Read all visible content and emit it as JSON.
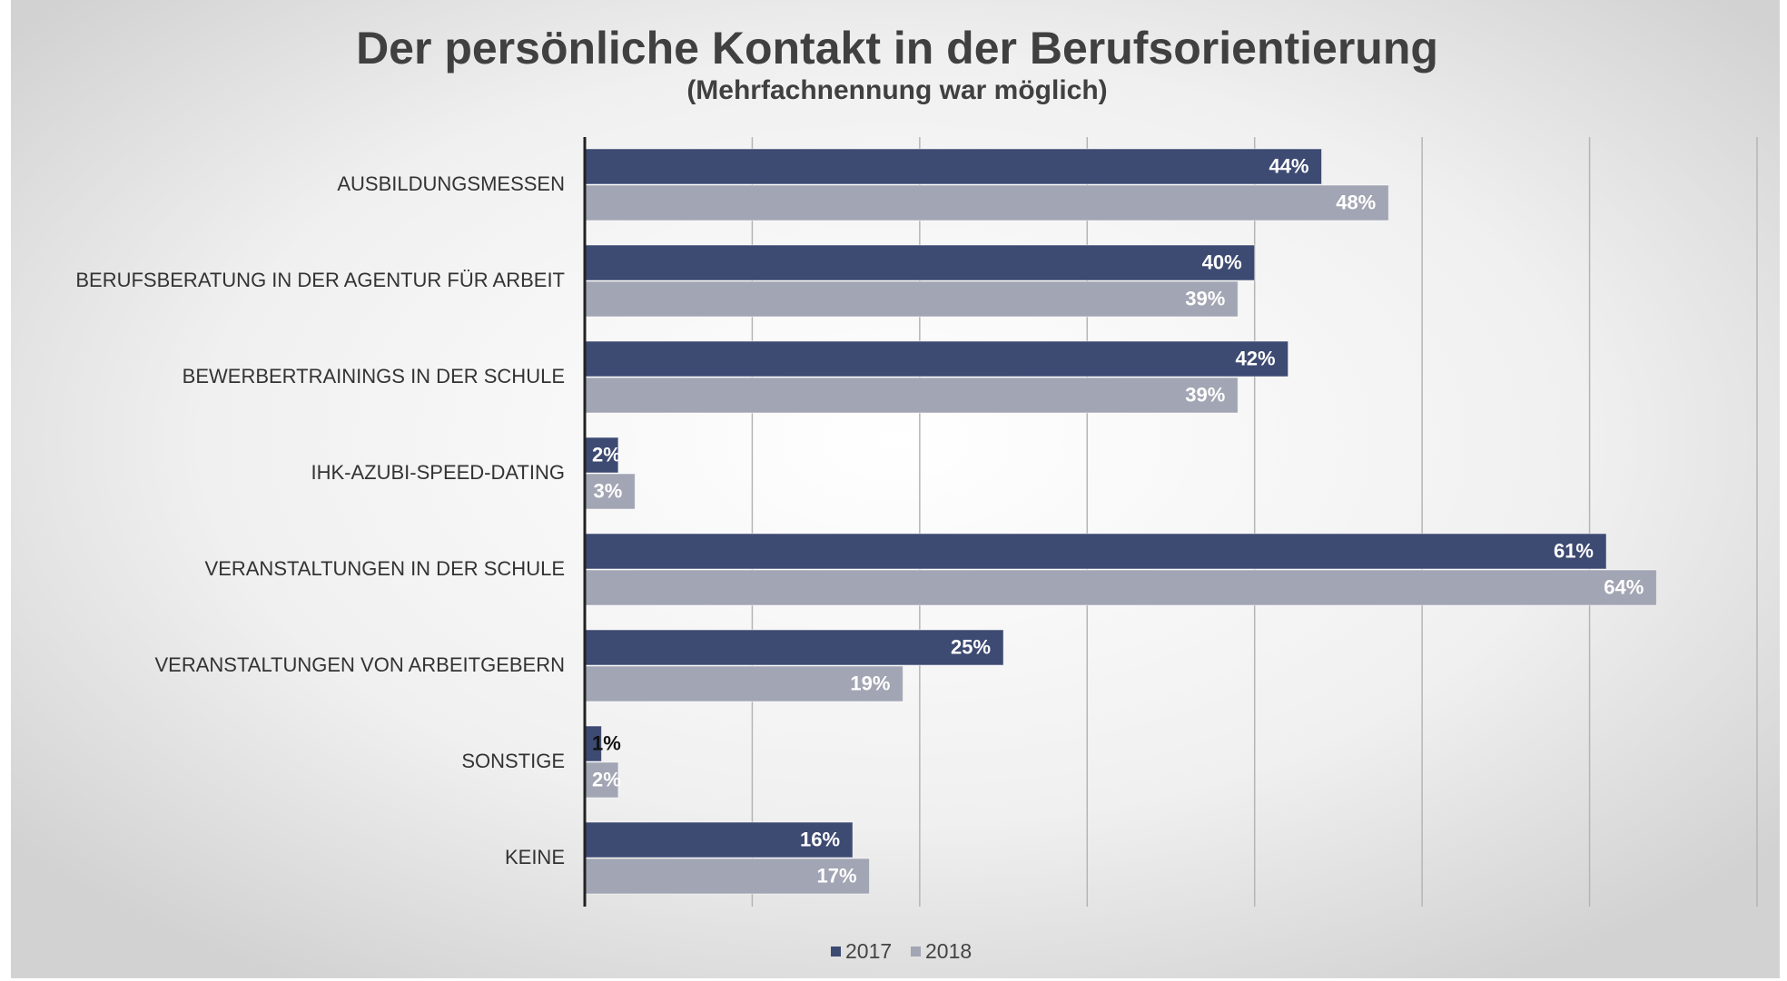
{
  "chart_data": {
    "type": "bar",
    "orientation": "horizontal",
    "title": "Der persönliche Kontakt in der Berufsorientierung",
    "subtitle": "(Mehrfachnennung war möglich)",
    "categories": [
      "AUSBILDUNGSMESSEN",
      "BERUFSBERATUNG IN DER AGENTUR FÜR ARBEIT",
      "BEWERBERTRAININGS IN DER SCHULE",
      "IHK-AZUBI-SPEED-DATING",
      "VERANSTALTUNGEN IN DER SCHULE",
      "VERANSTALTUNGEN VON ARBEITGEBERN",
      "SONSTIGE",
      "KEINE"
    ],
    "series": [
      {
        "name": "2017",
        "color": "#3d4a72",
        "values": [
          44,
          40,
          42,
          2,
          61,
          25,
          1,
          16
        ],
        "value_labels": [
          "44%",
          "40%",
          "42%",
          "2%",
          "61%",
          "25%",
          "1%",
          "16%"
        ]
      },
      {
        "name": "2018",
        "color": "#a2a5b3",
        "values": [
          48,
          39,
          39,
          3,
          64,
          19,
          2,
          17
        ],
        "value_labels": [
          "48%",
          "39%",
          "39%",
          "3%",
          "64%",
          "19%",
          "2%",
          "17%"
        ]
      }
    ],
    "xlim": [
      0,
      70
    ],
    "xticks": [
      0,
      10,
      20,
      30,
      40,
      50,
      60,
      70
    ],
    "grid": true,
    "legend": "bottom"
  }
}
